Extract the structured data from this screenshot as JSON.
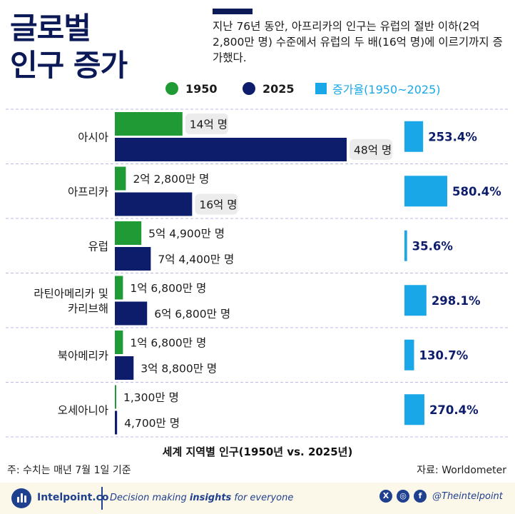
{
  "header": {
    "title_line1": "글로벌",
    "title_line2": "인구 증가",
    "subtitle": "지난 76년 동안, 아프리카의 인구는 유럽의 절반 이하(2억 2,800만 명) 수준에서 유럽의 두 배(16억 명)에 이르기까지 증가했다."
  },
  "legend": {
    "series_a": "1950",
    "series_b": "2025",
    "rate": "증가율(1950~2025)"
  },
  "colors": {
    "y1950": "#1f9a34",
    "y2025": "#0e1d6b",
    "rate": "#1aa7e8",
    "highlight": "#ececec",
    "divider": "#b9b9e6",
    "title": "#0b1a57"
  },
  "chart_data": {
    "type": "bar",
    "title": "세계 지역별 인구(1950년 vs. 2025년)",
    "unit": "명",
    "categories": [
      [
        "아시아"
      ],
      [
        "아프리카"
      ],
      [
        "유럽"
      ],
      [
        "라틴아메리카 및",
        "카리브해"
      ],
      [
        "북아메리카"
      ],
      [
        "오세아니아"
      ]
    ],
    "series": [
      {
        "name": "1950",
        "values": [
          1400000000,
          228000000,
          549000000,
          168000000,
          168000000,
          13000000
        ],
        "labels": [
          "14억 명",
          "2억 2,800만 명",
          "5억 4,900만 명",
          "1억 6,800만 명",
          "1억 6,800만 명",
          "1,300만 명"
        ]
      },
      {
        "name": "2025",
        "values": [
          4800000000,
          1600000000,
          744000000,
          668000000,
          388000000,
          47000000
        ],
        "labels": [
          "48억 명",
          "16억 명",
          "7억 4,400만 명",
          "6억 6,800만 명",
          "3억 8,800만 명",
          "4,700만 명"
        ]
      }
    ],
    "growth_rate": {
      "name": "증가율(1950~2025)",
      "values": [
        253.4,
        580.4,
        35.6,
        298.1,
        130.7,
        270.4
      ],
      "labels": [
        "253.4%",
        "580.4%",
        "35.6%",
        "298.1%",
        "130.7%",
        "270.4%"
      ]
    },
    "highlighted": [
      "아시아 1950",
      "아시아 2025",
      "아프리카 2025"
    ]
  },
  "footer": {
    "note": "주: 수치는 매년 7월 1일 기준",
    "source": "자료: Worldometer",
    "brand": "Intelpoint.co",
    "tagline_pre": "Decision making ",
    "tagline_bold": "insights",
    "tagline_post": " for everyone",
    "icon_x": "X",
    "icon_instagram": "◎",
    "icon_facebook": "f",
    "handle": "@Theintelpoint"
  }
}
